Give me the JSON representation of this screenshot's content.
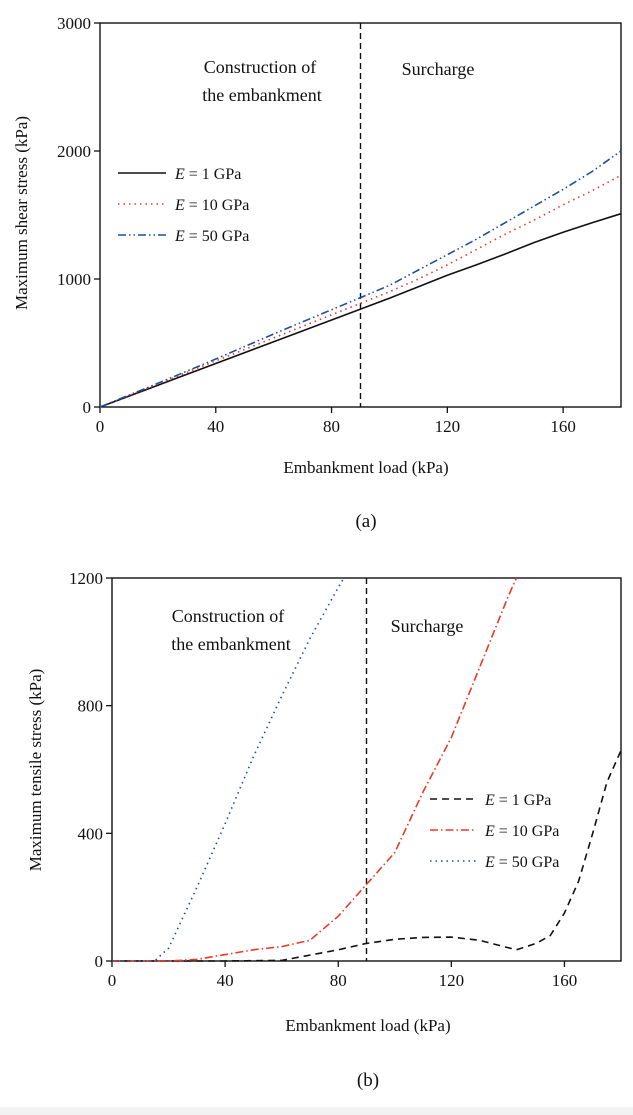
{
  "chart_data": [
    {
      "type": "line",
      "caption": "(a)",
      "xlabel": "Embankment load (kPa)",
      "ylabel": "Maximum shear stress (kPa)",
      "xlim": [
        0,
        180
      ],
      "ylim": [
        0,
        3000
      ],
      "xticks": [
        "0",
        "40",
        "80",
        "120",
        "160"
      ],
      "yticks": [
        "0",
        "1000",
        "2000",
        "3000"
      ],
      "grid": false,
      "legend_position": "middle-left",
      "vline_x": 90,
      "annotations": [
        "Construction of",
        "the embankment",
        "Surcharge"
      ],
      "series": [
        {
          "name": "E = 1 GPa",
          "legend_italic": "E",
          "legend_rest": " = 1 GPa",
          "color": "#111111",
          "dash": "none",
          "x": [
            0,
            20,
            40,
            60,
            80,
            90,
            100,
            110,
            120,
            130,
            140,
            150,
            160,
            170,
            180
          ],
          "y": [
            0,
            170,
            340,
            510,
            680,
            765,
            850,
            940,
            1030,
            1110,
            1195,
            1285,
            1365,
            1440,
            1510
          ]
        },
        {
          "name": "E = 10 GPa",
          "legend_italic": "E",
          "legend_rest": " = 10 GPa",
          "color": "#e8392b",
          "dash": "dotted",
          "x": [
            0,
            20,
            40,
            60,
            80,
            90,
            100,
            110,
            120,
            130,
            140,
            150,
            160,
            170,
            180
          ],
          "y": [
            0,
            180,
            360,
            540,
            720,
            810,
            900,
            1000,
            1110,
            1230,
            1350,
            1460,
            1580,
            1690,
            1810
          ]
        },
        {
          "name": "E = 50 GPa",
          "legend_italic": "E",
          "legend_rest": " = 50 GPa",
          "color": "#1f4e9e",
          "dash": "dashdotdot",
          "x": [
            0,
            20,
            40,
            60,
            80,
            90,
            100,
            110,
            120,
            130,
            140,
            150,
            160,
            170,
            180
          ],
          "y": [
            0,
            185,
            375,
            570,
            760,
            855,
            950,
            1070,
            1190,
            1310,
            1440,
            1570,
            1700,
            1840,
            2000
          ]
        }
      ]
    },
    {
      "type": "line",
      "caption": "(b)",
      "xlabel": "Embankment load (kPa)",
      "ylabel": "Maximum tensile stress (kPa)",
      "xlim": [
        0,
        180
      ],
      "ylim": [
        0,
        1200
      ],
      "xticks": [
        "0",
        "40",
        "80",
        "120",
        "160"
      ],
      "yticks": [
        "0",
        "400",
        "800",
        "1200"
      ],
      "grid": false,
      "legend_position": "middle-right",
      "vline_x": 90,
      "annotations": [
        "Construction of",
        "the embankment",
        "Surcharge"
      ],
      "series": [
        {
          "name": "E = 1 GPa",
          "legend_italic": "E",
          "legend_rest": " = 1 GPa",
          "color": "#111111",
          "dash": "dashed",
          "x": [
            0,
            40,
            60,
            80,
            90,
            100,
            110,
            120,
            130,
            143,
            150,
            155,
            160,
            165,
            170,
            175,
            180
          ],
          "y": [
            0,
            0,
            2,
            35,
            55,
            68,
            74,
            75,
            65,
            35,
            55,
            80,
            150,
            250,
            400,
            560,
            660
          ]
        },
        {
          "name": "E = 10 GPa",
          "legend_italic": "E",
          "legend_rest": " = 10 GPa",
          "color": "#e8392b",
          "dash": "dashdot",
          "x": [
            0,
            20,
            30,
            40,
            50,
            60,
            70,
            80,
            90,
            100,
            110,
            120,
            130,
            140,
            143
          ],
          "y": [
            0,
            0,
            5,
            20,
            35,
            45,
            65,
            140,
            240,
            340,
            530,
            700,
            920,
            1140,
            1200
          ]
        },
        {
          "name": "E = 50 GPa",
          "legend_italic": "E",
          "legend_rest": " = 50 GPa",
          "color": "#1f4e9e",
          "dash": "dotted",
          "x": [
            0,
            15,
            20,
            30,
            40,
            50,
            60,
            70,
            80,
            82
          ],
          "y": [
            0,
            0,
            40,
            230,
            430,
            640,
            830,
            1010,
            1170,
            1200
          ]
        }
      ]
    }
  ]
}
